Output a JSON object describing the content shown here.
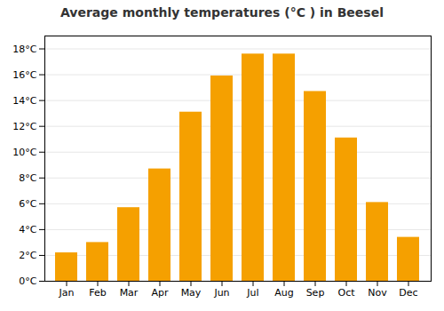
{
  "chart_data": {
    "type": "bar",
    "title": "Average monthly temperatures (°C ) in Beesel",
    "categories": [
      "Jan",
      "Feb",
      "Mar",
      "Apr",
      "May",
      "Jun",
      "Jul",
      "Aug",
      "Sep",
      "Oct",
      "Nov",
      "Dec"
    ],
    "values": [
      2.2,
      3.0,
      5.7,
      8.7,
      13.1,
      15.9,
      17.6,
      17.6,
      14.7,
      11.1,
      6.1,
      3.4
    ],
    "color": "#F5A000",
    "ylim": [
      0,
      19
    ],
    "yticks": [
      {
        "value": 0,
        "label": "0°C"
      },
      {
        "value": 2,
        "label": "2°C"
      },
      {
        "value": 4,
        "label": "4°C"
      },
      {
        "value": 6,
        "label": "6°C"
      },
      {
        "value": 8,
        "label": "8°C"
      },
      {
        "value": 10,
        "label": "10°C"
      },
      {
        "value": 12,
        "label": "12°C"
      },
      {
        "value": 14,
        "label": "14°C"
      },
      {
        "value": 16,
        "label": "16°C"
      },
      {
        "value": 18,
        "label": "18°C"
      }
    ],
    "grid": true
  }
}
